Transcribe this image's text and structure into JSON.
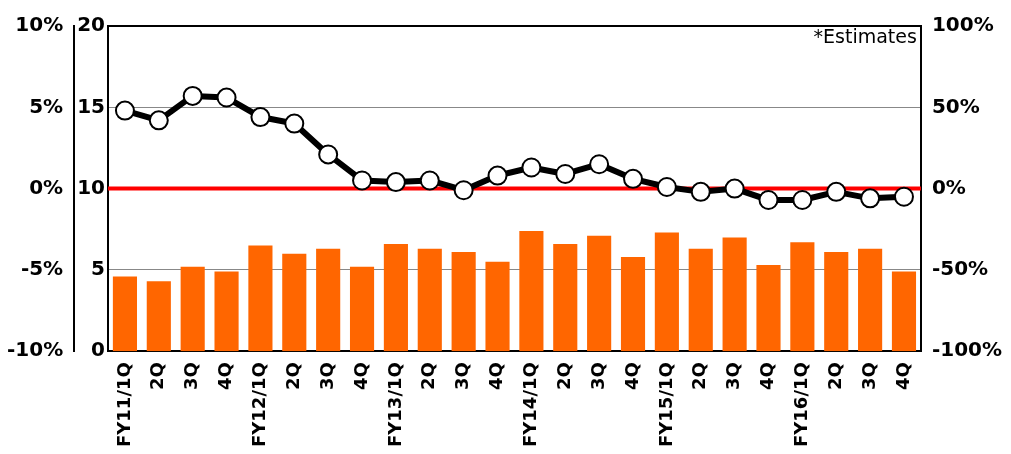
{
  "chart_data": {
    "type": "bar",
    "categories": [
      "FY11/1Q",
      "2Q",
      "3Q",
      "4Q",
      "FY12/1Q",
      "2Q",
      "3Q",
      "4Q",
      "FY13/1Q",
      "2Q",
      "3Q",
      "4Q",
      "FY14/1Q",
      "2Q",
      "3Q",
      "4Q",
      "FY15/1Q",
      "2Q",
      "3Q",
      "4Q",
      "FY16/1Q",
      "2Q",
      "3Q",
      "4Q"
    ],
    "series": [
      {
        "color": "#ff6600",
        "values": [
          4.6,
          4.3,
          5.2,
          4.9,
          6.5,
          6.0,
          6.3,
          5.2,
          6.6,
          6.3,
          6.1,
          5.5,
          7.4,
          6.6,
          7.1,
          5.8,
          7.3,
          6.3,
          7.0,
          5.3,
          6.7,
          6.1,
          6.3,
          4.9
        ]
      },
      {
        "type": "line",
        "axis": "y2",
        "color": "#000000",
        "values": [
          48,
          42,
          57,
          56,
          44,
          40,
          21,
          5,
          4,
          5,
          -1,
          8,
          13,
          9,
          15,
          6,
          1,
          -2,
          0,
          -7,
          -7,
          -2,
          -6,
          -5
        ]
      }
    ],
    "ylim": [
      0,
      20
    ],
    "yticks": [
      0,
      5,
      10,
      15,
      20
    ],
    "y3lim": [
      -10,
      10
    ],
    "y3ticks": [
      {
        "value": -10,
        "label": "-10%"
      },
      {
        "value": -5,
        "label": "-5%"
      },
      {
        "value": 0,
        "label": "0%"
      },
      {
        "value": 5,
        "label": "5%"
      },
      {
        "value": 10,
        "label": "10%"
      }
    ],
    "y2lim": [
      -100,
      100
    ],
    "y2ticks": [
      {
        "value": -100,
        "label": "-100%"
      },
      {
        "value": -50,
        "label": "-50%"
      },
      {
        "value": 0,
        "label": "0%"
      },
      {
        "value": 50,
        "label": "50%"
      },
      {
        "value": 100,
        "label": "100%"
      }
    ],
    "ref_lines": [
      {
        "axis": "y2",
        "value": 0,
        "color": "#ff0000"
      }
    ],
    "annotations": [
      "*Estimates"
    ],
    "grid": "y",
    "marker": "circle",
    "line_style": "solid",
    "legend": false
  }
}
